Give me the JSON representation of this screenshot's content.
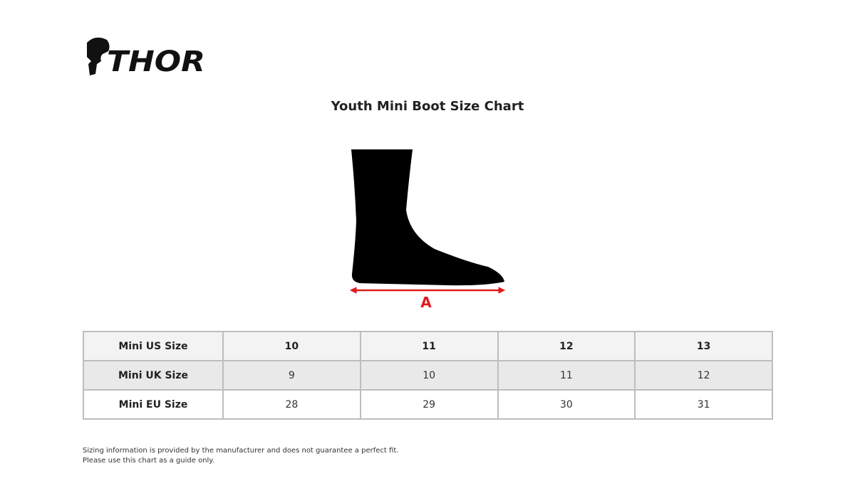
{
  "brand": {
    "logo_text": "THOR"
  },
  "title": "Youth Mini Boot Size Chart",
  "diagram": {
    "measure_label": "A",
    "arrow_color": "#e01b1b"
  },
  "table": {
    "rows": [
      {
        "label": "Mini US Size",
        "values": [
          "10",
          "11",
          "12",
          "13"
        ]
      },
      {
        "label": "Mini UK Size",
        "values": [
          "9",
          "10",
          "11",
          "12"
        ]
      },
      {
        "label": "Mini EU Size",
        "values": [
          "28",
          "29",
          "30",
          "31"
        ]
      }
    ]
  },
  "disclaimer": {
    "line1": "Sizing information is provided by the manufacturer and does not guarantee a perfect fit.",
    "line2": "Please use this chart as a guide only."
  }
}
